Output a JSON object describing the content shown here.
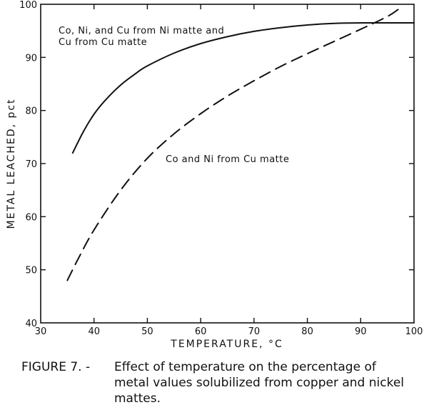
{
  "chart_data": {
    "type": "line",
    "xlabel": "TEMPERATURE, °C",
    "ylabel": "METAL LEACHED, pct",
    "xlim": [
      30,
      100
    ],
    "ylim": [
      40,
      100
    ],
    "x_ticks": [
      30,
      40,
      50,
      60,
      70,
      80,
      90,
      100
    ],
    "y_ticks": [
      40,
      50,
      60,
      70,
      80,
      90,
      100
    ],
    "grid": false,
    "series": [
      {
        "name": "Co, Ni, and Cu from Ni matte and Cu from Cu matte",
        "style": "solid",
        "x": [
          36,
          38,
          40,
          42,
          45,
          48,
          50,
          55,
          60,
          65,
          70,
          75,
          80,
          85,
          90,
          95,
          100
        ],
        "y": [
          72,
          76,
          79.3,
          81.8,
          84.8,
          87.1,
          88.4,
          90.8,
          92.6,
          93.9,
          94.9,
          95.6,
          96.1,
          96.4,
          96.5,
          96.5,
          96.5
        ]
      },
      {
        "name": "Co and Ni from Cu matte",
        "style": "dashed",
        "x": [
          35,
          37,
          40,
          45,
          50,
          55,
          60,
          65,
          70,
          75,
          80,
          85,
          90,
          95,
          97
        ],
        "y": [
          48,
          52,
          57.5,
          65,
          71,
          75.6,
          79.4,
          82.7,
          85.6,
          88.3,
          90.7,
          93,
          95.3,
          97.7,
          99
        ]
      }
    ],
    "annotations": [
      {
        "lines": [
          "Co, Ni, and Cu from Ni matte and",
          "Cu from Cu matte"
        ],
        "series": 0
      },
      {
        "lines": [
          "Co and Ni from Cu matte"
        ],
        "series": 1
      }
    ]
  },
  "caption": {
    "label": "FIGURE 7. -",
    "text": "Effect of temperature on the percentage of metal values solubilized from copper and nickel mattes."
  }
}
